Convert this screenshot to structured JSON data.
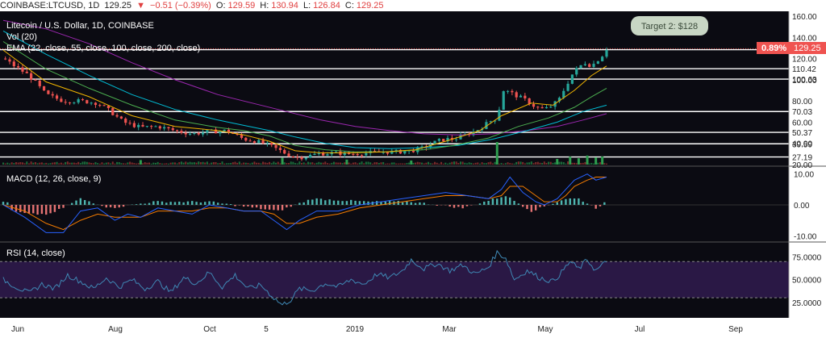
{
  "header": {
    "symbol": "COINBASE:LTCUSD, 1D",
    "last": "129.25",
    "arrow": "▼",
    "change": "−0.51 (−0.39%)",
    "o_label": "O:",
    "o_value": "129.59",
    "h_label": "H:",
    "h_value": "130.94",
    "l_label": "L:",
    "l_value": "126.84",
    "c_label": "C:",
    "c_value": "129.25"
  },
  "legend": {
    "title": "Litecoin / U.S. Dollar, 1D, COINBASE",
    "vol": "Vol (20)",
    "ema": "EMA (22, close, 55, close, 100, close, 200, close)",
    "macd": "MACD (12, 26, close, 9)",
    "rsi": "RSI (14, close)"
  },
  "annotation": {
    "text": "Target 2: $128"
  },
  "price_tag": {
    "pct": "0.89%",
    "value": "129.25"
  },
  "colors": {
    "up": "#26a69a",
    "down": "#ef5350",
    "ema22": "#f0b400",
    "ema55": "#4caf50",
    "ema100": "#00bcd4",
    "ema200": "#9c27b0",
    "macd": "#2962ff",
    "signal": "#f57c00",
    "rsi": "#3f88b5",
    "rsi_band": "#2a1845",
    "pane_bg": "#0b0b12"
  },
  "chart_data": [
    {
      "type": "candlestick",
      "title": "Litecoin / U.S. Dollar, 1D, COINBASE",
      "x_ticks": [
        "Jun",
        "Aug",
        "Oct",
        "5",
        "2019",
        "Mar",
        "May",
        "Jul",
        "Sep"
      ],
      "y_ticks": [
        20,
        40,
        60,
        80,
        100,
        120,
        140,
        160
      ],
      "ylim": [
        20,
        160
      ],
      "horizontal_levels": [
        128.35,
        110.42,
        100.63,
        70.03,
        50.37,
        39.59,
        27.19
      ],
      "last_price": 129.25,
      "close_path": [
        [
          0,
          120
        ],
        [
          6,
          112
        ],
        [
          12,
          104
        ],
        [
          20,
          86
        ],
        [
          28,
          80
        ],
        [
          36,
          80
        ],
        [
          44,
          78
        ],
        [
          50,
          70
        ],
        [
          56,
          60
        ],
        [
          64,
          55
        ],
        [
          72,
          56
        ],
        [
          80,
          52
        ],
        [
          88,
          49
        ],
        [
          96,
          51
        ],
        [
          104,
          52
        ],
        [
          108,
          48
        ],
        [
          112,
          44
        ],
        [
          118,
          42
        ],
        [
          124,
          38
        ],
        [
          128,
          34
        ],
        [
          132,
          30
        ],
        [
          136,
          27
        ],
        [
          140,
          27
        ],
        [
          146,
          30
        ],
        [
          154,
          31
        ],
        [
          162,
          30
        ],
        [
          170,
          31
        ],
        [
          178,
          32
        ],
        [
          184,
          32
        ],
        [
          190,
          33
        ],
        [
          196,
          36
        ],
        [
          202,
          42
        ],
        [
          206,
          44
        ],
        [
          210,
          44
        ],
        [
          214,
          47
        ],
        [
          218,
          50
        ],
        [
          222,
          54
        ],
        [
          226,
          60
        ],
        [
          230,
          64
        ],
        [
          233,
          90
        ],
        [
          236,
          88
        ],
        [
          240,
          84
        ],
        [
          244,
          80
        ],
        [
          248,
          74
        ],
        [
          252,
          72
        ],
        [
          256,
          76
        ],
        [
          259,
          82
        ],
        [
          262,
          94
        ],
        [
          265,
          105
        ],
        [
          268,
          112
        ],
        [
          271,
          116
        ],
        [
          274,
          113
        ],
        [
          277,
          119
        ],
        [
          279,
          123
        ],
        [
          281,
          129.25
        ]
      ],
      "ema22": [
        [
          0,
          128
        ],
        [
          20,
          98
        ],
        [
          40,
          84
        ],
        [
          60,
          66
        ],
        [
          80,
          56
        ],
        [
          100,
          52
        ],
        [
          112,
          48
        ],
        [
          124,
          42
        ],
        [
          136,
          33
        ],
        [
          148,
          31
        ],
        [
          162,
          31
        ],
        [
          178,
          32
        ],
        [
          192,
          34
        ],
        [
          206,
          42
        ],
        [
          222,
          52
        ],
        [
          232,
          66
        ],
        [
          246,
          78
        ],
        [
          256,
          76
        ],
        [
          266,
          90
        ],
        [
          274,
          104
        ],
        [
          281,
          113
        ]
      ],
      "ema55": [
        [
          0,
          136
        ],
        [
          20,
          110
        ],
        [
          40,
          92
        ],
        [
          60,
          76
        ],
        [
          80,
          62
        ],
        [
          100,
          55
        ],
        [
          112,
          52
        ],
        [
          124,
          47
        ],
        [
          136,
          38
        ],
        [
          150,
          34
        ],
        [
          164,
          32
        ],
        [
          180,
          32
        ],
        [
          196,
          34
        ],
        [
          210,
          38
        ],
        [
          226,
          45
        ],
        [
          240,
          56
        ],
        [
          254,
          64
        ],
        [
          266,
          74
        ],
        [
          274,
          84
        ],
        [
          281,
          92
        ]
      ],
      "ema100": [
        [
          0,
          146
        ],
        [
          20,
          124
        ],
        [
          40,
          104
        ],
        [
          60,
          86
        ],
        [
          80,
          72
        ],
        [
          100,
          62
        ],
        [
          112,
          57
        ],
        [
          124,
          52
        ],
        [
          136,
          46
        ],
        [
          150,
          40
        ],
        [
          164,
          36
        ],
        [
          180,
          35
        ],
        [
          196,
          36
        ],
        [
          212,
          38
        ],
        [
          228,
          44
        ],
        [
          244,
          52
        ],
        [
          258,
          60
        ],
        [
          270,
          70
        ],
        [
          281,
          76
        ]
      ],
      "ema200": [
        [
          0,
          156
        ],
        [
          20,
          148
        ],
        [
          40,
          134
        ],
        [
          60,
          116
        ],
        [
          80,
          100
        ],
        [
          100,
          86
        ],
        [
          116,
          78
        ],
        [
          132,
          70
        ],
        [
          148,
          62
        ],
        [
          164,
          56
        ],
        [
          180,
          52
        ],
        [
          196,
          49
        ],
        [
          212,
          48
        ],
        [
          228,
          49
        ],
        [
          244,
          52
        ],
        [
          258,
          56
        ],
        [
          270,
          62
        ],
        [
          281,
          68
        ]
      ],
      "volume": [
        {
          "x": 64,
          "v": 2.0
        },
        {
          "x": 130,
          "v": 3.0
        },
        {
          "x": 160,
          "v": 2.2
        },
        {
          "x": 190,
          "v": 1.8
        },
        {
          "x": 230,
          "v": 10.0
        },
        {
          "x": 258,
          "v": 2.5
        },
        {
          "x": 264,
          "v": 3.5
        },
        {
          "x": 268,
          "v": 2.8
        },
        {
          "x": 272,
          "v": 4.0
        },
        {
          "x": 276,
          "v": 3.2
        },
        {
          "x": 279,
          "v": 3.6
        }
      ]
    },
    {
      "type": "line",
      "title": "MACD (12, 26, close, 9)",
      "y_ticks": [
        10.0,
        0.0,
        -10.0
      ],
      "ylim": [
        -11.5,
        12
      ],
      "macd": [
        [
          0,
          0
        ],
        [
          10,
          -4
        ],
        [
          20,
          -9
        ],
        [
          28,
          -9
        ],
        [
          36,
          -2
        ],
        [
          44,
          -1
        ],
        [
          52,
          -5
        ],
        [
          58,
          -3
        ],
        [
          64,
          -4
        ],
        [
          72,
          -1
        ],
        [
          80,
          -2
        ],
        [
          88,
          -3
        ],
        [
          96,
          0
        ],
        [
          104,
          -1
        ],
        [
          112,
          -2
        ],
        [
          120,
          -2
        ],
        [
          126,
          -5
        ],
        [
          132,
          -8
        ],
        [
          138,
          -5
        ],
        [
          146,
          -2
        ],
        [
          156,
          -2
        ],
        [
          166,
          0
        ],
        [
          176,
          1
        ],
        [
          186,
          2
        ],
        [
          196,
          3
        ],
        [
          206,
          4
        ],
        [
          216,
          3
        ],
        [
          226,
          2
        ],
        [
          232,
          5
        ],
        [
          236,
          9
        ],
        [
          242,
          4
        ],
        [
          248,
          1
        ],
        [
          252,
          0
        ],
        [
          258,
          2
        ],
        [
          262,
          5
        ],
        [
          266,
          8
        ],
        [
          272,
          10
        ],
        [
          276,
          8
        ],
        [
          281,
          9
        ]
      ],
      "signal": [
        [
          0,
          0
        ],
        [
          10,
          -2
        ],
        [
          20,
          -6
        ],
        [
          28,
          -8
        ],
        [
          36,
          -5
        ],
        [
          44,
          -3
        ],
        [
          52,
          -4
        ],
        [
          58,
          -4
        ],
        [
          64,
          -4
        ],
        [
          72,
          -2
        ],
        [
          80,
          -2
        ],
        [
          88,
          -2
        ],
        [
          96,
          -1
        ],
        [
          104,
          -1
        ],
        [
          112,
          -2
        ],
        [
          120,
          -2
        ],
        [
          126,
          -3
        ],
        [
          132,
          -6
        ],
        [
          138,
          -6
        ],
        [
          146,
          -4
        ],
        [
          156,
          -3
        ],
        [
          166,
          -1
        ],
        [
          176,
          0
        ],
        [
          186,
          1
        ],
        [
          196,
          2
        ],
        [
          206,
          3
        ],
        [
          216,
          3
        ],
        [
          226,
          2
        ],
        [
          232,
          3
        ],
        [
          236,
          6
        ],
        [
          242,
          6
        ],
        [
          248,
          3
        ],
        [
          252,
          1
        ],
        [
          258,
          1
        ],
        [
          262,
          3
        ],
        [
          266,
          6
        ],
        [
          272,
          8
        ],
        [
          276,
          9
        ],
        [
          281,
          9
        ]
      ],
      "hist": [
        [
          4,
          -2
        ],
        [
          12,
          -3
        ],
        [
          22,
          -3
        ],
        [
          36,
          2
        ],
        [
          50,
          -1
        ],
        [
          70,
          1
        ],
        [
          96,
          1
        ],
        [
          128,
          -2
        ],
        [
          144,
          2
        ],
        [
          170,
          1
        ],
        [
          190,
          1
        ],
        [
          214,
          -1
        ],
        [
          234,
          3
        ],
        [
          246,
          -2
        ],
        [
          262,
          2
        ],
        [
          268,
          2
        ],
        [
          276,
          -1
        ],
        [
          281,
          1
        ]
      ]
    },
    {
      "type": "line",
      "title": "RSI (14, close)",
      "y_ticks": [
        75.0,
        50.0,
        25.0
      ],
      "ylim": [
        15,
        88
      ],
      "band": [
        30,
        70
      ],
      "rsi": [
        [
          0,
          50
        ],
        [
          6,
          42
        ],
        [
          12,
          35
        ],
        [
          18,
          45
        ],
        [
          24,
          40
        ],
        [
          30,
          55
        ],
        [
          36,
          48
        ],
        [
          42,
          40
        ],
        [
          48,
          52
        ],
        [
          54,
          42
        ],
        [
          60,
          50
        ],
        [
          66,
          40
        ],
        [
          72,
          48
        ],
        [
          78,
          36
        ],
        [
          84,
          52
        ],
        [
          90,
          46
        ],
        [
          96,
          58
        ],
        [
          102,
          42
        ],
        [
          108,
          55
        ],
        [
          114,
          40
        ],
        [
          120,
          44
        ],
        [
          126,
          30
        ],
        [
          130,
          22
        ],
        [
          134,
          28
        ],
        [
          138,
          40
        ],
        [
          144,
          38
        ],
        [
          150,
          46
        ],
        [
          156,
          42
        ],
        [
          162,
          50
        ],
        [
          168,
          45
        ],
        [
          174,
          56
        ],
        [
          180,
          52
        ],
        [
          186,
          60
        ],
        [
          190,
          72
        ],
        [
          196,
          62
        ],
        [
          202,
          68
        ],
        [
          208,
          60
        ],
        [
          214,
          66
        ],
        [
          220,
          56
        ],
        [
          226,
          64
        ],
        [
          230,
          80
        ],
        [
          234,
          74
        ],
        [
          238,
          50
        ],
        [
          244,
          60
        ],
        [
          250,
          52
        ],
        [
          256,
          48
        ],
        [
          260,
          58
        ],
        [
          264,
          70
        ],
        [
          268,
          62
        ],
        [
          272,
          72
        ],
        [
          276,
          60
        ],
        [
          281,
          70
        ]
      ]
    }
  ]
}
